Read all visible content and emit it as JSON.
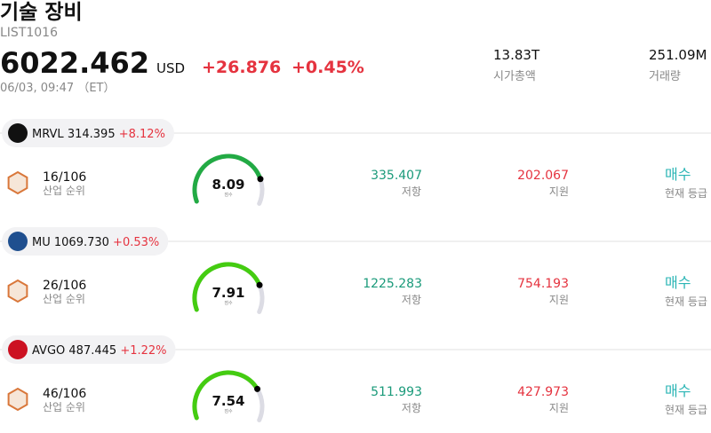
{
  "header": {
    "title": "기술 장비",
    "code": "LIST1016",
    "price": "6022.462",
    "currency": "USD",
    "change": "+26.876",
    "change_pct": "+0.45%",
    "datetime": "06/03, 09:47 （ET）",
    "market_cap": "13.83T",
    "market_cap_label": "시가총액",
    "volume": "251.09M",
    "volume_label": "거래량"
  },
  "stocks": [
    {
      "symbol": "MRVL",
      "price": "314.395",
      "change": "+8.12%",
      "rank": "16/106",
      "rank_label": "산업 순위",
      "score": 8.09,
      "score_label": "점수",
      "gauge_color": "#22aa44",
      "resistance": "335.407",
      "resistance_label": "저항",
      "support": "202.067",
      "support_label": "지원",
      "rating": "매수",
      "rating_label": "현재 등급"
    },
    {
      "symbol": "MU",
      "price": "1069.730",
      "change": "+0.53%",
      "rank": "26/106",
      "rank_label": "산업 순위",
      "score": 7.91,
      "score_label": "점수",
      "gauge_color": "#44cc11",
      "resistance": "1225.283",
      "resistance_label": "저항",
      "support": "754.193",
      "support_label": "지원",
      "rating": "매수",
      "rating_label": "현재 등급"
    },
    {
      "symbol": "AVGO",
      "price": "487.445",
      "change": "+1.22%",
      "rank": "46/106",
      "rank_label": "산업 순위",
      "score": 7.54,
      "score_label": "점수",
      "gauge_color": "#44cc11",
      "resistance": "511.993",
      "resistance_label": "저항",
      "support": "427.973",
      "support_label": "지원",
      "rating": "매수",
      "rating_label": "현재 등급"
    }
  ]
}
